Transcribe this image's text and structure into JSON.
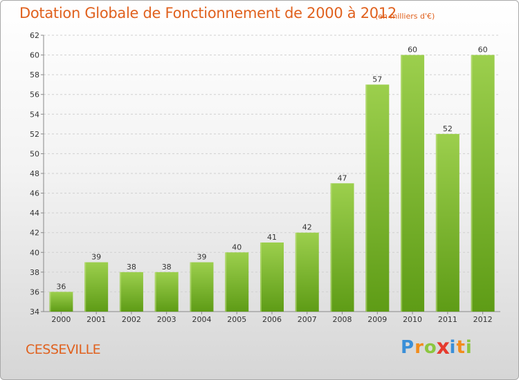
{
  "title": "Dotation Globale de Fonctionnement de 2000 à 2012",
  "subtitle": "(en milliers d'€)",
  "commune": "CESSEVILLE",
  "logo": {
    "text": "Proxiti",
    "letters": [
      "P",
      "r",
      "o",
      "x",
      "i",
      "t",
      "i"
    ],
    "colors": [
      "#3a8fd8",
      "#f28c1c",
      "#8cc63f",
      "#e63b2e",
      "#3a8fd8",
      "#f28c1c",
      "#8cc63f"
    ]
  },
  "colors": {
    "accent": "#e0611e",
    "bar_top": "#9ccf4d",
    "bar_bottom": "#5e9c16"
  },
  "chart_data": {
    "type": "bar",
    "title": "Dotation Globale de Fonctionnement de 2000 à 2012",
    "subtitle": "(en milliers d'€)",
    "categories": [
      "2000",
      "2001",
      "2002",
      "2003",
      "2004",
      "2005",
      "2006",
      "2007",
      "2008",
      "2009",
      "2010",
      "2011",
      "2012"
    ],
    "values": [
      36,
      39,
      38,
      38,
      39,
      40,
      41,
      42,
      47,
      57,
      60,
      52,
      60
    ],
    "ylim": [
      34,
      62
    ],
    "yticks": [
      34,
      36,
      38,
      40,
      42,
      44,
      46,
      48,
      50,
      52,
      54,
      56,
      58,
      60,
      62
    ],
    "grid": true,
    "xlabel": "",
    "ylabel": ""
  }
}
